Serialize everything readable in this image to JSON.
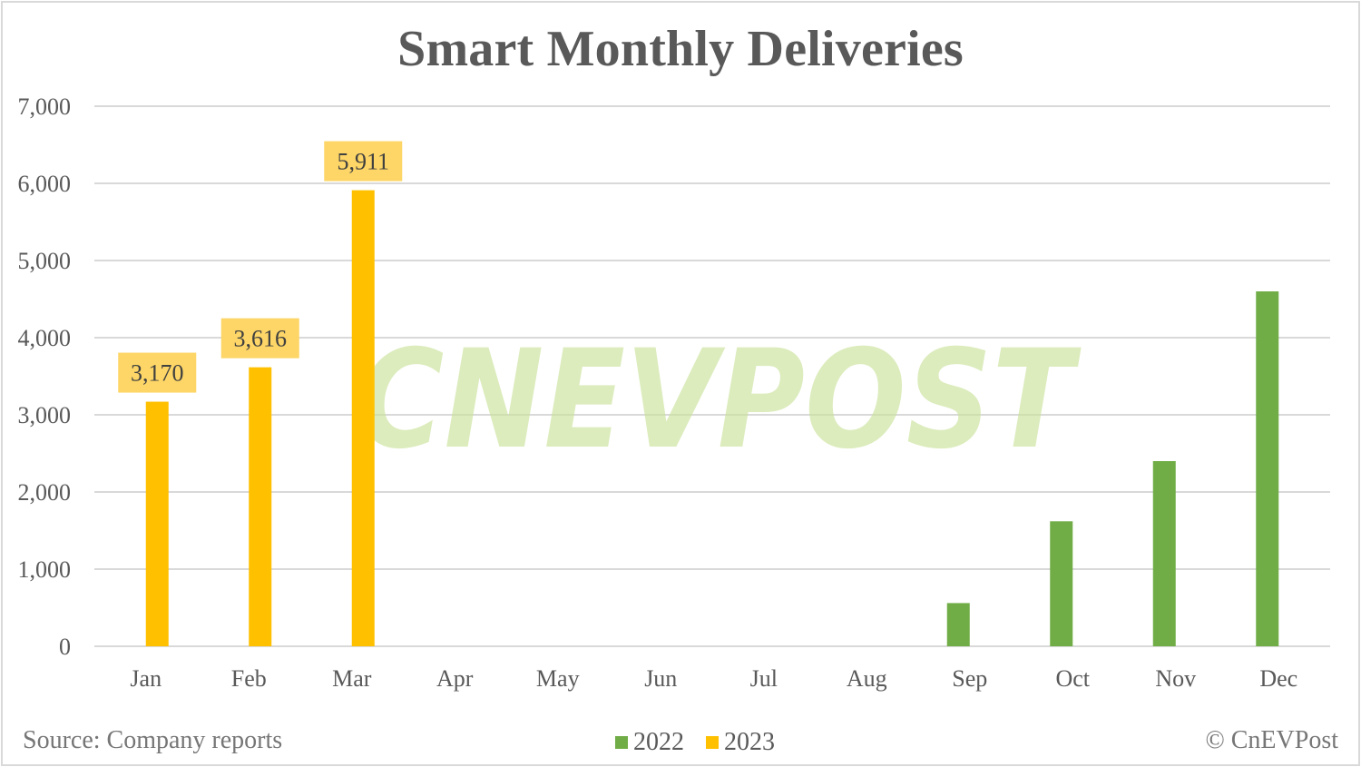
{
  "chart_data": {
    "type": "bar",
    "title": "Smart Monthly Deliveries",
    "xlabel": "",
    "ylabel": "",
    "categories": [
      "Jan",
      "Feb",
      "Mar",
      "Apr",
      "May",
      "Jun",
      "Jul",
      "Aug",
      "Sep",
      "Oct",
      "Nov",
      "Dec"
    ],
    "series": [
      {
        "name": "2022",
        "color": "#70AD47",
        "values": [
          null,
          null,
          null,
          null,
          null,
          null,
          null,
          null,
          560,
          1620,
          2400,
          4600
        ]
      },
      {
        "name": "2023",
        "color": "#FFC000",
        "values": [
          3170,
          3616,
          5911,
          null,
          null,
          null,
          null,
          null,
          null,
          null,
          null,
          null
        ]
      }
    ],
    "data_labels": [
      {
        "series": "2023",
        "category": "Jan",
        "text": "3,170"
      },
      {
        "series": "2023",
        "category": "Feb",
        "text": "3,616"
      },
      {
        "series": "2023",
        "category": "Mar",
        "text": "5,911"
      }
    ],
    "ylim": [
      0,
      7000
    ],
    "yticks": [
      0,
      1000,
      2000,
      3000,
      4000,
      5000,
      6000,
      7000
    ],
    "ytick_labels": [
      "0",
      "1,000",
      "2,000",
      "3,000",
      "4,000",
      "5,000",
      "6,000",
      "7,000"
    ],
    "grid": true,
    "legend_position": "bottom"
  },
  "title": "Smart Monthly Deliveries",
  "legend": [
    {
      "label": "2022",
      "color": "#70AD47"
    },
    {
      "label": "2023",
      "color": "#FFC000"
    }
  ],
  "footer": {
    "source": "Source: Company reports",
    "copyright": "© CnEVPost"
  },
  "watermark": "CNEVPOST",
  "colors": {
    "label_bg": "#FDD667",
    "grid": "#D9D9D9",
    "watermark": "#C9E29A"
  }
}
